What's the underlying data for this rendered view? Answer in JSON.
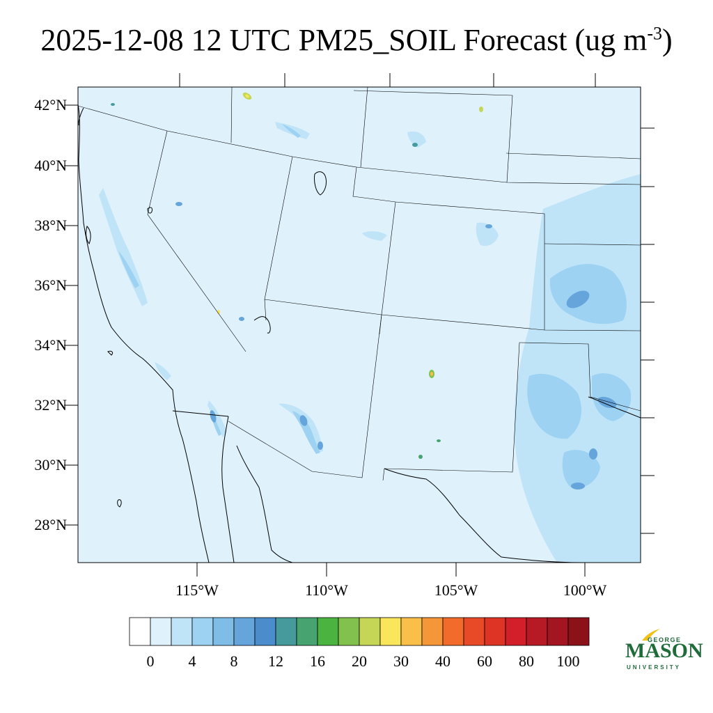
{
  "header": {
    "title_main": "2025-12-08 12 UTC PM25_SOIL Forecast (ug m",
    "title_sup": "-3",
    "title_end": ")"
  },
  "axes": {
    "lat_labels": [
      "42°N",
      "40°N",
      "38°N",
      "36°N",
      "34°N",
      "32°N",
      "30°N",
      "28°N"
    ],
    "lon_labels": [
      "115°W",
      "110°W",
      "105°W",
      "100°W"
    ]
  },
  "colorbar": {
    "labels": [
      "0",
      "4",
      "8",
      "12",
      "16",
      "20",
      "30",
      "40",
      "60",
      "80",
      "100"
    ],
    "colors": [
      "#ffffff",
      "#dff1fb",
      "#c0e4f7",
      "#9dd2f2",
      "#7fbde6",
      "#65a5db",
      "#4a8ccc",
      "#469a9c",
      "#47a370",
      "#4bb441",
      "#82c14d",
      "#c5d656",
      "#f9e65a",
      "#f9bf48",
      "#f59739",
      "#f26b2b",
      "#e84a27",
      "#dd3426",
      "#d21f2a",
      "#b81a25",
      "#a31621",
      "#8b1219"
    ]
  },
  "map": {
    "background_color": "#dff1fb",
    "projection": "Lambert conformal",
    "field": "PM25_SOIL"
  },
  "logo": {
    "line1": "GEORGE",
    "line2": "MASON",
    "line3": "UNIVERSITY"
  }
}
